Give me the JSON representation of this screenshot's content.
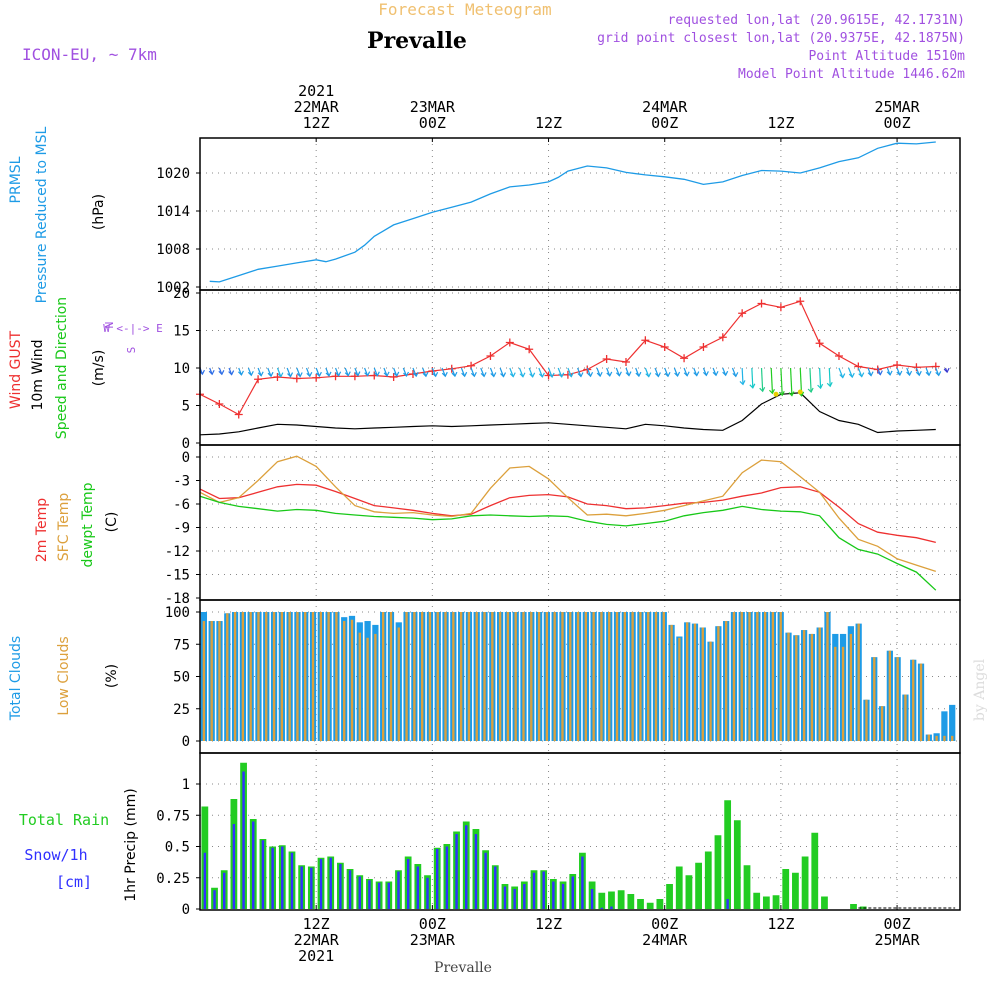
{
  "header": {
    "supertitle": "Forecast Meteogram",
    "station": "Prevalle",
    "model": "ICON-EU, ~ 7km",
    "requested": "requested lon,lat (20.9615E, 42.1731N)",
    "gridpoint": "grid point closest lon,lat (20.9375E, 42.1875N)",
    "altitude": "Point Altitude 1510m",
    "model_altitude": "Model Point Altitude 1446.62m",
    "footer_station": "Prevalle",
    "credit": "by Angel"
  },
  "time_axis": {
    "top_labels": [
      {
        "hour": 12,
        "lines": [
          "2021",
          "22MAR",
          "12Z"
        ]
      },
      {
        "hour": 24,
        "lines": [
          "23MAR",
          "00Z"
        ]
      },
      {
        "hour": 36,
        "lines": [
          "12Z"
        ]
      },
      {
        "hour": 48,
        "lines": [
          "24MAR",
          "00Z"
        ]
      },
      {
        "hour": 60,
        "lines": [
          "12Z"
        ]
      },
      {
        "hour": 72,
        "lines": [
          "25MAR",
          "00Z"
        ]
      }
    ],
    "bottom_labels": [
      {
        "hour": 12,
        "lines": [
          "12Z",
          "22MAR",
          "2021"
        ]
      },
      {
        "hour": 24,
        "lines": [
          "00Z",
          "23MAR"
        ]
      },
      {
        "hour": 36,
        "lines": [
          "12Z"
        ]
      },
      {
        "hour": 48,
        "lines": [
          "00Z",
          "24MAR"
        ]
      },
      {
        "hour": 60,
        "lines": [
          "12Z"
        ]
      },
      {
        "hour": 72,
        "lines": [
          "00Z",
          "25MAR"
        ]
      }
    ]
  },
  "colors": {
    "pressure": "#1e9be6",
    "gust": "#ee3030",
    "wind": "#000000",
    "temp": "#ee3030",
    "sfc_temp": "#dca03c",
    "dewpoint": "#18c818",
    "total_clouds": "#1e9be6",
    "low_clouds": "#dca03c",
    "rain": "#22cc22",
    "snow": "#3030ff",
    "purple": "#a050e0",
    "title_gold": "#f0c070"
  },
  "chart_data": [
    {
      "type": "line",
      "panel": "pressure",
      "label_lines": [
        "PRMSL",
        "Pressure Reduced to MSL"
      ],
      "unit": "(hPa)",
      "ylim": [
        1002,
        1026
      ],
      "yticks": [
        "1002",
        "1008",
        "1014",
        "1020"
      ],
      "x": [
        1,
        2,
        4,
        6,
        8,
        10,
        12,
        13,
        14,
        16,
        17,
        18,
        20,
        22,
        24,
        26,
        28,
        30,
        32,
        34,
        36,
        37,
        38,
        40,
        42,
        44,
        46,
        48,
        50,
        52,
        54,
        56,
        58,
        60,
        62,
        64,
        66,
        68,
        70,
        72,
        74,
        76
      ],
      "values": [
        1002.9,
        1002.8,
        1003.8,
        1004.8,
        1005.3,
        1005.8,
        1006.3,
        1006.0,
        1006.4,
        1007.5,
        1008.6,
        1010.0,
        1011.8,
        1012.8,
        1013.8,
        1014.6,
        1015.4,
        1016.7,
        1017.8,
        1018.1,
        1018.6,
        1019.3,
        1020.3,
        1021.1,
        1020.8,
        1020.1,
        1019.7,
        1019.4,
        1019.0,
        1018.2,
        1018.6,
        1019.6,
        1020.4,
        1020.3,
        1020.0,
        1020.8,
        1021.8,
        1022.4,
        1023.9,
        1024.7,
        1024.6,
        1024.9
      ]
    },
    {
      "type": "line",
      "panel": "wind",
      "label_lines": [
        "Wind GUST",
        "10m Wind",
        "Speed and Direction"
      ],
      "unit": "(m/s)",
      "compass": [
        "N",
        "W <-|-> E",
        "S"
      ],
      "ylim": [
        0,
        20
      ],
      "yticks": [
        "0",
        "5",
        "10",
        "15",
        "20"
      ],
      "x": [
        0,
        2,
        4,
        6,
        8,
        10,
        12,
        14,
        16,
        18,
        20,
        22,
        24,
        26,
        28,
        30,
        32,
        34,
        36,
        38,
        40,
        42,
        44,
        46,
        48,
        50,
        52,
        54,
        56,
        58,
        60,
        62,
        64,
        66,
        68,
        70,
        72,
        74,
        76
      ],
      "gust": [
        6.5,
        5.2,
        3.8,
        8.5,
        8.8,
        8.6,
        8.7,
        8.9,
        8.9,
        9.0,
        8.8,
        9.2,
        9.6,
        9.9,
        10.3,
        11.6,
        13.4,
        12.5,
        9.0,
        9.1,
        9.8,
        11.2,
        10.8,
        13.7,
        12.8,
        11.3,
        12.8,
        14.1,
        17.3,
        18.6,
        18.1,
        18.9,
        13.3,
        11.6,
        10.2,
        9.8,
        10.4,
        10.1,
        10.2
      ],
      "speed": [
        1.1,
        1.2,
        1.5,
        2.0,
        2.5,
        2.4,
        2.2,
        2.0,
        1.9,
        2.0,
        2.1,
        2.2,
        2.3,
        2.2,
        2.3,
        2.4,
        2.5,
        2.6,
        2.7,
        2.5,
        2.3,
        2.1,
        1.9,
        2.5,
        2.3,
        2.0,
        1.8,
        1.7,
        3.0,
        5.2,
        6.5,
        6.7,
        4.2,
        3.0,
        2.5,
        1.4,
        1.6,
        1.7,
        1.8
      ]
    },
    {
      "type": "line",
      "panel": "temperature",
      "label_lines": [
        "2m Temp",
        "SFC Temp",
        "dewpt Temp"
      ],
      "unit": "(C)",
      "ylim": [
        -18,
        1
      ],
      "yticks": [
        "-18",
        "-15",
        "-12",
        "-9",
        "-6",
        "-3",
        "0"
      ],
      "x": [
        0,
        2,
        4,
        6,
        8,
        10,
        12,
        14,
        16,
        18,
        20,
        22,
        24,
        26,
        28,
        30,
        32,
        34,
        36,
        38,
        40,
        42,
        44,
        46,
        48,
        50,
        52,
        54,
        56,
        58,
        60,
        62,
        64,
        66,
        68,
        70,
        72,
        74,
        76
      ],
      "series": [
        {
          "name": "2m Temp",
          "key": "temp",
          "values": [
            -4.1,
            -5.3,
            -5.2,
            -4.5,
            -3.8,
            -3.5,
            -3.6,
            -4.4,
            -5.3,
            -6.2,
            -6.5,
            -6.8,
            -7.2,
            -7.5,
            -7.3,
            -6.2,
            -5.2,
            -4.9,
            -4.8,
            -5.1,
            -6.0,
            -6.2,
            -6.6,
            -6.5,
            -6.2,
            -5.9,
            -5.8,
            -5.5,
            -5.0,
            -4.6,
            -3.9,
            -3.8,
            -4.5,
            -6.4,
            -8.5,
            -9.6,
            -10.0,
            -10.3,
            -10.9
          ]
        },
        {
          "name": "SFC Temp",
          "key": "sfc_temp",
          "values": [
            -4.5,
            -5.8,
            -5.2,
            -3.0,
            -0.6,
            0.1,
            -1.2,
            -3.8,
            -6.2,
            -7.0,
            -7.2,
            -7.1,
            -7.4,
            -7.6,
            -7.2,
            -4.0,
            -1.4,
            -1.2,
            -2.8,
            -5.2,
            -7.4,
            -7.3,
            -7.5,
            -7.2,
            -6.8,
            -6.2,
            -5.6,
            -5.0,
            -2.0,
            -0.4,
            -0.6,
            -2.5,
            -4.5,
            -7.8,
            -10.5,
            -11.4,
            -13.0,
            -13.8,
            -14.6
          ]
        },
        {
          "name": "dewpt Temp",
          "key": "dewpoint",
          "values": [
            -5.0,
            -5.8,
            -6.3,
            -6.6,
            -6.9,
            -6.7,
            -6.8,
            -7.2,
            -7.4,
            -7.6,
            -7.7,
            -7.8,
            -8.0,
            -7.9,
            -7.5,
            -7.4,
            -7.5,
            -7.6,
            -7.5,
            -7.6,
            -8.2,
            -8.6,
            -8.8,
            -8.5,
            -8.2,
            -7.5,
            -7.1,
            -6.8,
            -6.3,
            -6.7,
            -6.9,
            -7.0,
            -7.5,
            -10.3,
            -11.8,
            -12.4,
            -13.6,
            -14.7,
            -17.0
          ]
        }
      ]
    },
    {
      "type": "bar",
      "panel": "clouds",
      "label_lines": [
        "Total Clouds",
        "Low Clouds"
      ],
      "unit": "(%)",
      "ylim": [
        0,
        100
      ],
      "yticks": [
        "0",
        "25",
        "50",
        "75",
        "100"
      ],
      "x_start": 0,
      "total": [
        100,
        93,
        93,
        99,
        100,
        100,
        100,
        100,
        100,
        100,
        100,
        100,
        100,
        100,
        100,
        100,
        100,
        100,
        96,
        97,
        92,
        93,
        90,
        100,
        100,
        92,
        100,
        100,
        100,
        100,
        100,
        100,
        100,
        100,
        100,
        100,
        100,
        100,
        100,
        100,
        100,
        100,
        100,
        100,
        100,
        100,
        100,
        100,
        100,
        100,
        100,
        100,
        100,
        100,
        100,
        100,
        100,
        100,
        100,
        100,
        90,
        81,
        92,
        91,
        88,
        77,
        89,
        93,
        100,
        100,
        100,
        100,
        100,
        100,
        100,
        84,
        82,
        86,
        83,
        88,
        100,
        83,
        83,
        89,
        91,
        32,
        65,
        27,
        70,
        65,
        36,
        63,
        60,
        5,
        6,
        23,
        28
      ],
      "low": [
        93,
        93,
        93,
        99,
        100,
        100,
        100,
        100,
        100,
        100,
        100,
        100,
        100,
        100,
        100,
        100,
        100,
        100,
        93,
        94,
        84,
        80,
        83,
        100,
        100,
        88,
        100,
        100,
        100,
        100,
        100,
        100,
        100,
        100,
        100,
        100,
        100,
        100,
        100,
        100,
        100,
        100,
        100,
        100,
        100,
        100,
        100,
        100,
        100,
        100,
        100,
        100,
        100,
        100,
        100,
        100,
        100,
        100,
        100,
        100,
        90,
        80,
        92,
        91,
        88,
        77,
        89,
        93,
        100,
        100,
        100,
        100,
        100,
        100,
        100,
        84,
        82,
        86,
        83,
        88,
        100,
        73,
        73,
        83,
        91,
        32,
        65,
        27,
        70,
        65,
        36,
        63,
        60,
        5,
        4,
        4,
        4
      ]
    },
    {
      "type": "bar",
      "panel": "precipitation",
      "label_lines": [
        "Total  Rain",
        "Snow/1h",
        "[cm]"
      ],
      "unit": "1hr Precip (mm)",
      "ylim": [
        0,
        1.25
      ],
      "yticks": [
        "0",
        "0.25",
        "0.5",
        "0.75",
        "1"
      ],
      "x_start": 1,
      "rain": [
        0.82,
        0.17,
        0.31,
        0.88,
        1.17,
        0.72,
        0.56,
        0.5,
        0.51,
        0.46,
        0.35,
        0.34,
        0.41,
        0.42,
        0.37,
        0.32,
        0.27,
        0.24,
        0.22,
        0.22,
        0.31,
        0.42,
        0.36,
        0.27,
        0.49,
        0.52,
        0.62,
        0.7,
        0.64,
        0.47,
        0.35,
        0.2,
        0.18,
        0.22,
        0.31,
        0.31,
        0.24,
        0.22,
        0.28,
        0.45,
        0.22,
        0.13,
        0.14,
        0.15,
        0.12,
        0.08,
        0.05,
        0.08,
        0.2,
        0.34,
        0.27,
        0.37,
        0.46,
        0.59,
        0.87,
        0.71,
        0.35,
        0.13,
        0.1,
        0.11,
        0.32,
        0.29,
        0.42,
        0.61,
        0.1,
        0,
        0,
        0.04,
        0.02,
        0,
        0,
        0,
        0,
        0,
        0,
        0
      ],
      "snow": [
        0.45,
        0.15,
        0.29,
        0.68,
        1.1,
        0.7,
        0.55,
        0.49,
        0.5,
        0.45,
        0.34,
        0.33,
        0.4,
        0.41,
        0.36,
        0.31,
        0.26,
        0.23,
        0.21,
        0.21,
        0.3,
        0.4,
        0.34,
        0.25,
        0.48,
        0.5,
        0.6,
        0.67,
        0.6,
        0.45,
        0.34,
        0.18,
        0.16,
        0.2,
        0.29,
        0.3,
        0.22,
        0.2,
        0.26,
        0.42,
        0.16,
        0.01,
        0.02,
        0,
        0,
        0,
        0,
        0,
        0,
        0,
        0,
        0,
        0,
        0,
        0.08,
        0,
        0,
        0,
        0,
        0,
        0,
        0,
        0,
        0,
        0,
        0,
        0,
        0,
        0,
        0,
        0,
        0,
        0,
        0,
        0,
        0
      ]
    }
  ]
}
